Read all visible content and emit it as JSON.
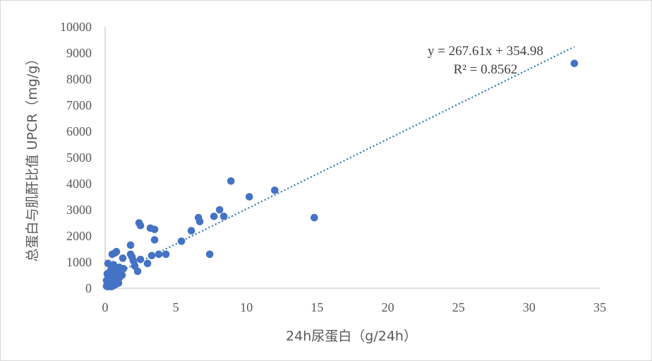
{
  "chart_data": {
    "type": "scatter",
    "xlabel": "24h尿蛋白（g/24h）",
    "ylabel": "总蛋白与肌酐比值 UPCR（mg/g）",
    "xlim": [
      0,
      35
    ],
    "ylim": [
      0,
      10000
    ],
    "x_ticks": [
      0,
      5,
      10,
      15,
      20,
      25,
      30,
      35
    ],
    "y_ticks": [
      0,
      1000,
      2000,
      3000,
      4000,
      5000,
      6000,
      7000,
      8000,
      9000,
      10000
    ],
    "grid": false,
    "legend": "none",
    "marker_color": "#4472c4",
    "trendline": {
      "type": "linear",
      "slope": 267.61,
      "intercept": 354.98,
      "x_range": [
        0.1,
        33.2
      ],
      "equation_label": "y = 267.61x + 354.98",
      "r2_label": "R² = 0.8562",
      "style": "dotted"
    },
    "points": [
      [
        0.1,
        80
      ],
      [
        0.15,
        150
      ],
      [
        0.2,
        60
      ],
      [
        0.25,
        220
      ],
      [
        0.1,
        300
      ],
      [
        0.3,
        120
      ],
      [
        0.35,
        400
      ],
      [
        0.2,
        500
      ],
      [
        0.4,
        250
      ],
      [
        0.5,
        350
      ],
      [
        0.45,
        60
      ],
      [
        0.6,
        100
      ],
      [
        0.7,
        130
      ],
      [
        0.3,
        600
      ],
      [
        0.55,
        650
      ],
      [
        0.2,
        950
      ],
      [
        0.65,
        550
      ],
      [
        0.8,
        500
      ],
      [
        0.9,
        700
      ],
      [
        1.0,
        400
      ],
      [
        1.1,
        600
      ],
      [
        1.2,
        500
      ],
      [
        0.85,
        300
      ],
      [
        0.75,
        800
      ],
      [
        0.6,
        900
      ],
      [
        0.5,
        1300
      ],
      [
        0.7,
        1350
      ],
      [
        0.8,
        1400
      ],
      [
        1.3,
        750
      ],
      [
        1.25,
        1150
      ],
      [
        1.0,
        800
      ],
      [
        0.4,
        700
      ],
      [
        0.25,
        450
      ],
      [
        0.95,
        200
      ],
      [
        0.15,
        550
      ],
      [
        1.8,
        1650
      ],
      [
        1.8,
        1300
      ],
      [
        1.9,
        1200
      ],
      [
        2.0,
        1050
      ],
      [
        2.1,
        850
      ],
      [
        2.3,
        650
      ],
      [
        2.5,
        1100
      ],
      [
        2.4,
        2500
      ],
      [
        2.5,
        2400
      ],
      [
        3.0,
        950
      ],
      [
        3.2,
        2300
      ],
      [
        3.5,
        2250
      ],
      [
        3.3,
        1250
      ],
      [
        3.5,
        1850
      ],
      [
        3.8,
        1300
      ],
      [
        4.3,
        1300
      ],
      [
        5.4,
        1800
      ],
      [
        6.1,
        2200
      ],
      [
        6.6,
        2700
      ],
      [
        6.7,
        2550
      ],
      [
        7.4,
        1300
      ],
      [
        7.7,
        2750
      ],
      [
        8.1,
        3000
      ],
      [
        8.4,
        2750
      ],
      [
        8.9,
        4100
      ],
      [
        10.2,
        3500
      ],
      [
        12.0,
        3750
      ],
      [
        14.8,
        2700
      ],
      [
        33.2,
        8600
      ]
    ]
  }
}
